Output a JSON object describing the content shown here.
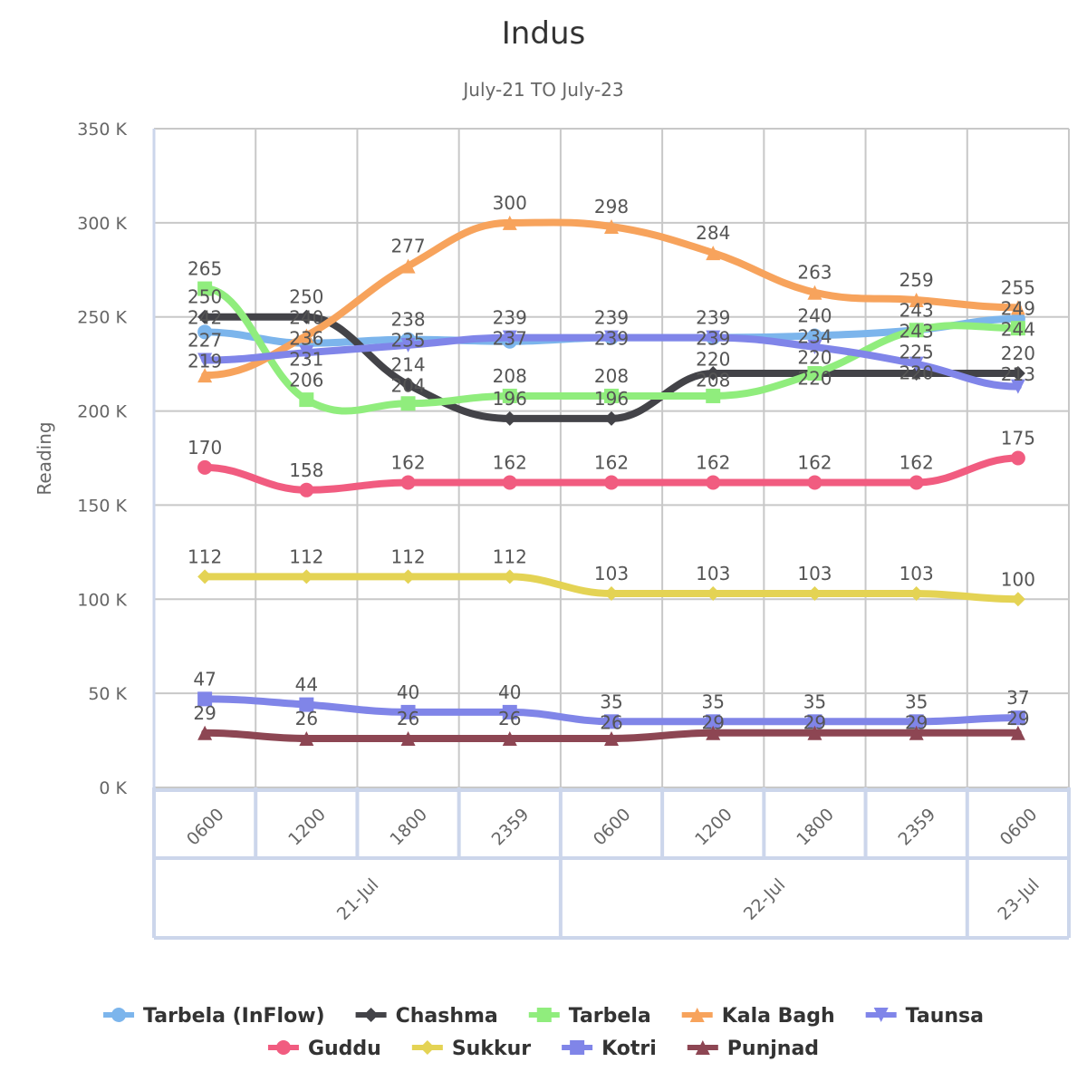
{
  "chart_data": {
    "type": "line",
    "title": "Indus",
    "subtitle": "July-21 TO July-23",
    "ylabel": "Reading",
    "ylim": [
      0,
      350000
    ],
    "yticks": [
      "0 K",
      "50 K",
      "100 K",
      "150 K",
      "200 K",
      "250 K",
      "300 K",
      "350 K"
    ],
    "categories": [
      "0600",
      "1200",
      "1800",
      "2359",
      "0600",
      "1200",
      "1800",
      "2359",
      "0600"
    ],
    "groups": [
      {
        "label": "21-Jul",
        "span": 4
      },
      {
        "label": "22-Jul",
        "span": 4
      },
      {
        "label": "23-Jul",
        "span": 1
      }
    ],
    "grid": true,
    "legend_placement": "bottom",
    "series": [
      {
        "name": "Tarbela (InFlow)",
        "color": "#7cb5ec",
        "marker": "circle",
        "values": [
          242,
          236,
          238,
          237,
          239,
          239,
          240,
          243,
          249
        ]
      },
      {
        "name": "Chashma",
        "color": "#434348",
        "marker": "diamond",
        "values": [
          250,
          250,
          214,
          196,
          196,
          220,
          220,
          220,
          220
        ]
      },
      {
        "name": "Tarbela",
        "color": "#90ed7d",
        "marker": "square",
        "values": [
          265,
          206,
          204,
          208,
          208,
          208,
          220,
          243,
          244
        ]
      },
      {
        "name": "Kala Bagh",
        "color": "#f7a35c",
        "marker": "triangle",
        "values": [
          219,
          240,
          277,
          300,
          298,
          284,
          263,
          259,
          255
        ]
      },
      {
        "name": "Taunsa",
        "color": "#8085e9",
        "marker": "triangle-down",
        "values": [
          227,
          231,
          235,
          239,
          239,
          239,
          234,
          225,
          213
        ]
      },
      {
        "name": "Guddu",
        "color": "#f15c80",
        "marker": "circle",
        "values": [
          170,
          158,
          162,
          162,
          162,
          162,
          162,
          162,
          175
        ]
      },
      {
        "name": "Sukkur",
        "color": "#e4d354",
        "marker": "diamond",
        "values": [
          112,
          112,
          112,
          112,
          103,
          103,
          103,
          103,
          100
        ]
      },
      {
        "name": "Kotri",
        "color": "#8085e8",
        "marker": "square",
        "values": [
          47,
          44,
          40,
          40,
          35,
          35,
          35,
          35,
          37
        ]
      },
      {
        "name": "Punjnad",
        "color": "#8d4653",
        "marker": "triangle",
        "values": [
          29,
          26,
          26,
          26,
          26,
          29,
          29,
          29,
          29
        ]
      }
    ]
  }
}
